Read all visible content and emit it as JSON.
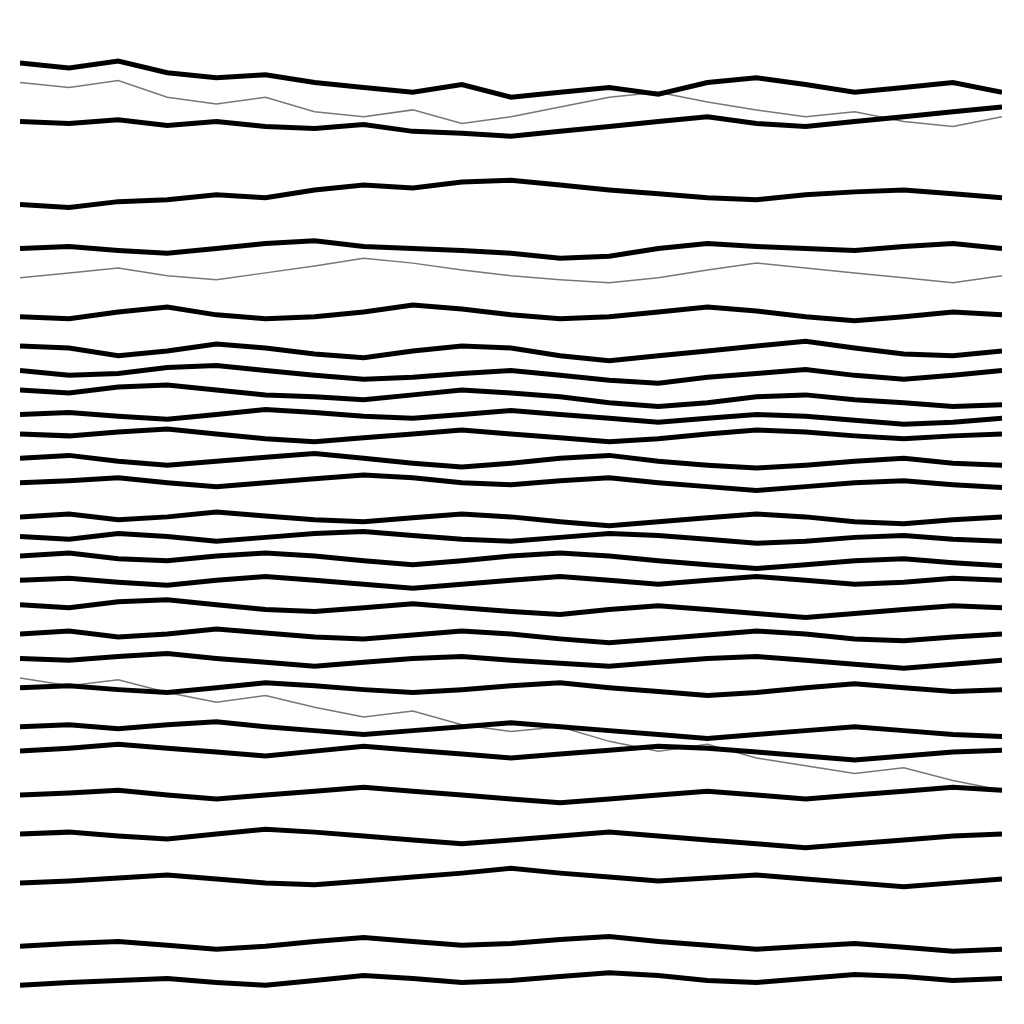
{
  "chart_data": {
    "type": "line",
    "tick_labels": false,
    "grid": false,
    "xlim": [
      0,
      100
    ],
    "ylim": [
      0,
      1000
    ],
    "x": [
      0,
      5,
      10,
      15,
      20,
      25,
      30,
      35,
      40,
      45,
      50,
      55,
      60,
      65,
      70,
      75,
      80,
      85,
      90,
      95,
      100
    ],
    "series": [
      {
        "color": "#000000",
        "values": [
          960,
          955,
          962,
          950,
          945,
          948,
          940,
          935,
          930,
          938,
          925,
          930,
          935,
          928,
          940,
          945,
          938,
          930,
          935,
          940,
          930
        ]
      },
      {
        "color": "#000000",
        "values": [
          900,
          898,
          902,
          896,
          900,
          895,
          893,
          897,
          890,
          888,
          885,
          890,
          895,
          900,
          905,
          898,
          895,
          900,
          905,
          910,
          915
        ]
      },
      {
        "color": "#000000",
        "values": [
          815,
          812,
          818,
          820,
          825,
          822,
          830,
          835,
          832,
          838,
          840,
          835,
          830,
          826,
          822,
          820,
          825,
          828,
          830,
          826,
          822
        ]
      },
      {
        "color": "#000000",
        "values": [
          770,
          772,
          768,
          765,
          770,
          775,
          778,
          772,
          770,
          768,
          765,
          760,
          762,
          770,
          775,
          772,
          770,
          768,
          772,
          775,
          770
        ]
      },
      {
        "color": "#777777",
        "values": [
          740,
          745,
          750,
          742,
          738,
          745,
          752,
          760,
          755,
          748,
          742,
          738,
          735,
          740,
          748,
          755,
          750,
          745,
          740,
          735,
          742
        ]
      },
      {
        "color": "#000000",
        "values": [
          700,
          698,
          705,
          710,
          702,
          698,
          700,
          705,
          712,
          708,
          702,
          698,
          700,
          705,
          710,
          706,
          700,
          696,
          700,
          705,
          702
        ]
      },
      {
        "color": "#000000",
        "values": [
          670,
          668,
          660,
          665,
          672,
          668,
          662,
          658,
          665,
          670,
          668,
          660,
          655,
          660,
          665,
          670,
          675,
          668,
          662,
          660,
          665
        ]
      },
      {
        "color": "#000000",
        "values": [
          645,
          640,
          642,
          648,
          650,
          645,
          640,
          636,
          638,
          642,
          645,
          640,
          635,
          632,
          638,
          642,
          646,
          640,
          636,
          640,
          645
        ]
      },
      {
        "color": "#000000",
        "values": [
          625,
          622,
          628,
          630,
          625,
          620,
          618,
          615,
          620,
          625,
          622,
          618,
          612,
          608,
          612,
          618,
          620,
          615,
          612,
          608,
          610
        ]
      },
      {
        "color": "#000000",
        "values": [
          600,
          602,
          598,
          595,
          600,
          605,
          602,
          598,
          596,
          600,
          604,
          600,
          596,
          592,
          596,
          600,
          598,
          594,
          590,
          592,
          596
        ]
      },
      {
        "color": "#000000",
        "values": [
          580,
          578,
          582,
          585,
          580,
          575,
          572,
          576,
          580,
          584,
          580,
          576,
          572,
          575,
          580,
          584,
          582,
          578,
          575,
          578,
          580
        ]
      },
      {
        "color": "#000000",
        "values": [
          555,
          558,
          552,
          548,
          552,
          556,
          560,
          555,
          550,
          546,
          550,
          555,
          558,
          552,
          548,
          545,
          548,
          552,
          555,
          550,
          548
        ]
      },
      {
        "color": "#000000",
        "values": [
          530,
          532,
          535,
          530,
          526,
          530,
          534,
          538,
          535,
          530,
          528,
          532,
          535,
          530,
          526,
          522,
          526,
          530,
          532,
          528,
          525
        ]
      },
      {
        "color": "#000000",
        "values": [
          495,
          498,
          492,
          495,
          500,
          496,
          492,
          490,
          494,
          498,
          495,
          490,
          486,
          490,
          494,
          498,
          495,
          490,
          488,
          492,
          495
        ]
      },
      {
        "color": "#000000",
        "values": [
          475,
          472,
          478,
          475,
          470,
          474,
          478,
          480,
          476,
          472,
          470,
          474,
          478,
          476,
          472,
          468,
          470,
          474,
          476,
          472,
          470
        ]
      },
      {
        "color": "#000000",
        "values": [
          455,
          458,
          452,
          450,
          455,
          458,
          455,
          450,
          446,
          450,
          455,
          458,
          455,
          450,
          446,
          442,
          446,
          450,
          452,
          448,
          445
        ]
      },
      {
        "color": "#000000",
        "values": [
          430,
          432,
          428,
          425,
          430,
          434,
          430,
          426,
          422,
          426,
          430,
          434,
          430,
          426,
          430,
          434,
          430,
          426,
          428,
          432,
          430
        ]
      },
      {
        "color": "#000000",
        "values": [
          405,
          402,
          408,
          410,
          405,
          400,
          398,
          402,
          406,
          402,
          398,
          395,
          400,
          404,
          400,
          396,
          392,
          396,
          400,
          404,
          402
        ]
      },
      {
        "color": "#000000",
        "values": [
          375,
          378,
          372,
          375,
          380,
          376,
          372,
          370,
          374,
          378,
          375,
          370,
          366,
          370,
          374,
          378,
          375,
          370,
          368,
          372,
          375
        ]
      },
      {
        "color": "#000000",
        "values": [
          350,
          348,
          352,
          355,
          350,
          346,
          342,
          346,
          350,
          352,
          348,
          345,
          342,
          346,
          350,
          352,
          348,
          344,
          340,
          344,
          348
        ]
      },
      {
        "color": "#000000",
        "values": [
          320,
          322,
          318,
          315,
          320,
          325,
          322,
          318,
          315,
          318,
          322,
          325,
          320,
          316,
          312,
          315,
          320,
          324,
          320,
          316,
          318
        ]
      },
      {
        "color": "#000000",
        "values": [
          280,
          282,
          278,
          282,
          285,
          280,
          276,
          272,
          276,
          280,
          284,
          280,
          276,
          272,
          268,
          272,
          276,
          280,
          276,
          272,
          270
        ]
      },
      {
        "color": "#000000",
        "values": [
          255,
          258,
          262,
          258,
          254,
          250,
          255,
          260,
          256,
          252,
          248,
          252,
          256,
          260,
          258,
          254,
          250,
          246,
          250,
          254,
          256
        ]
      },
      {
        "color": "#000000",
        "values": [
          210,
          212,
          215,
          210,
          206,
          210,
          214,
          218,
          214,
          210,
          206,
          202,
          206,
          210,
          214,
          210,
          206,
          210,
          214,
          218,
          215
        ]
      },
      {
        "color": "#000000",
        "values": [
          170,
          172,
          168,
          165,
          170,
          175,
          172,
          168,
          164,
          160,
          164,
          168,
          172,
          168,
          164,
          160,
          156,
          160,
          164,
          168,
          170
        ]
      },
      {
        "color": "#000000",
        "values": [
          120,
          122,
          125,
          128,
          124,
          120,
          118,
          122,
          126,
          130,
          135,
          130,
          126,
          122,
          125,
          128,
          124,
          120,
          116,
          120,
          124
        ]
      },
      {
        "color": "#000000",
        "values": [
          55,
          58,
          60,
          56,
          52,
          55,
          60,
          64,
          60,
          56,
          58,
          62,
          65,
          60,
          56,
          52,
          55,
          58,
          54,
          50,
          52
        ]
      },
      {
        "color": "#000000",
        "values": [
          15,
          18,
          20,
          22,
          18,
          15,
          20,
          25,
          22,
          18,
          20,
          24,
          28,
          25,
          20,
          18,
          22,
          26,
          24,
          20,
          22
        ]
      },
      {
        "color": "#777777",
        "values": [
          330,
          322,
          328,
          315,
          305,
          312,
          300,
          290,
          296,
          282,
          275,
          280,
          265,
          255,
          262,
          248,
          240,
          232,
          238,
          225,
          215
        ]
      },
      {
        "color": "#777777",
        "values": [
          940,
          935,
          942,
          925,
          918,
          925,
          910,
          905,
          912,
          898,
          905,
          915,
          925,
          930,
          920,
          912,
          905,
          910,
          900,
          895,
          905
        ]
      }
    ]
  }
}
